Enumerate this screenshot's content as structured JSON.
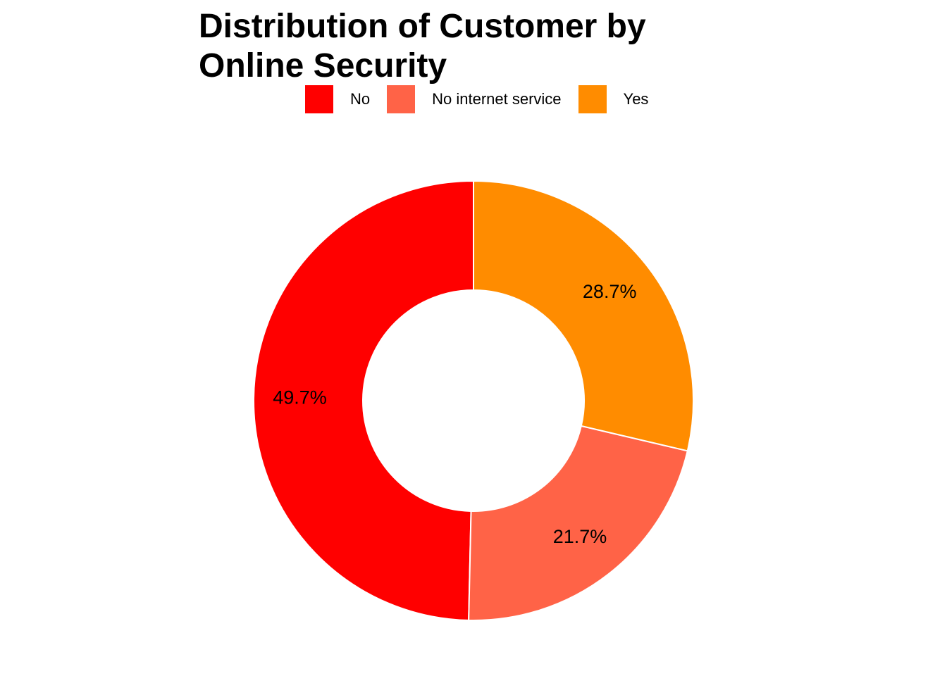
{
  "chart_data": {
    "type": "pie",
    "variant": "donut",
    "title_lines": [
      "Distribution of Customer by",
      "Online Security"
    ],
    "categories": [
      "No",
      "No internet service",
      "Yes"
    ],
    "values": [
      49.7,
      21.7,
      28.7
    ],
    "labels": [
      "49.7%",
      "21.7%",
      "28.7%"
    ],
    "colors": [
      "#ff0000",
      "#ff6347",
      "#ff8c00"
    ],
    "legend_position": "top",
    "start_at": "12 o'clock",
    "direction": "counter-clockwise"
  }
}
